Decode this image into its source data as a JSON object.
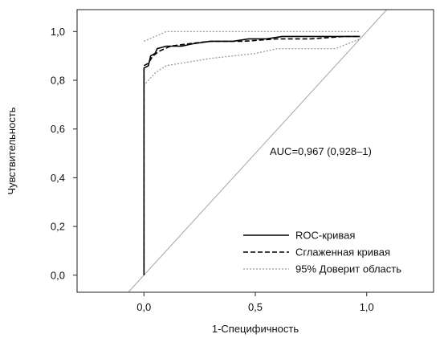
{
  "chart_data": {
    "type": "line",
    "title": "",
    "xlabel": "1-Специфичность",
    "ylabel": "Чувствительность",
    "xlim": [
      -0.3,
      1.3
    ],
    "ylim": [
      -0.07,
      1.09
    ],
    "x_ticks": [
      "0,0",
      "0,5",
      "1,0"
    ],
    "x_tick_values": [
      0.0,
      0.5,
      1.0
    ],
    "y_ticks": [
      "0,0",
      "0,2",
      "0,4",
      "0,6",
      "0,8",
      "1,0"
    ],
    "y_tick_values": [
      0.0,
      0.2,
      0.4,
      0.6,
      0.8,
      1.0
    ],
    "grid": false,
    "legend_position": "bottom-right",
    "annotation": "AUC=0,967 (0,928–1)",
    "colors": {
      "roc": "#000000",
      "smoothed": "#000000",
      "ci": "#9a9a9a",
      "reference": "#a6a6a6",
      "frame": "#222222"
    },
    "series": [
      {
        "name": "ROC-кривая",
        "style": "solid",
        "points": [
          [
            0.0,
            0.0
          ],
          [
            0.0,
            0.85
          ],
          [
            0.02,
            0.86
          ],
          [
            0.03,
            0.9
          ],
          [
            0.05,
            0.91
          ],
          [
            0.06,
            0.93
          ],
          [
            0.1,
            0.94
          ],
          [
            0.17,
            0.94
          ],
          [
            0.22,
            0.95
          ],
          [
            0.3,
            0.96
          ],
          [
            0.4,
            0.96
          ],
          [
            0.47,
            0.97
          ],
          [
            0.55,
            0.97
          ],
          [
            0.62,
            0.98
          ],
          [
            0.75,
            0.98
          ],
          [
            0.86,
            0.98
          ],
          [
            0.97,
            0.98
          ]
        ]
      },
      {
        "name": "Сглаженная кривая",
        "style": "dashed",
        "points": [
          [
            0.0,
            0.0
          ],
          [
            0.0,
            0.86
          ],
          [
            0.02,
            0.87
          ],
          [
            0.04,
            0.9
          ],
          [
            0.07,
            0.92
          ],
          [
            0.12,
            0.94
          ],
          [
            0.2,
            0.95
          ],
          [
            0.3,
            0.96
          ],
          [
            0.45,
            0.96
          ],
          [
            0.6,
            0.97
          ],
          [
            0.75,
            0.97
          ],
          [
            0.9,
            0.98
          ],
          [
            0.97,
            0.98
          ]
        ]
      },
      {
        "name": "95% Доверит область",
        "style": "dotted",
        "points": [
          [
            0.0,
            0.96
          ],
          [
            0.05,
            0.98
          ],
          [
            0.1,
            1.0
          ],
          [
            0.4,
            1.0
          ],
          [
            0.7,
            1.0
          ],
          [
            0.97,
            1.0
          ]
        ]
      },
      {
        "name": "",
        "style": "dotted",
        "points": [
          [
            0.0,
            0.0
          ],
          [
            0.0,
            0.78
          ],
          [
            0.05,
            0.83
          ],
          [
            0.1,
            0.86
          ],
          [
            0.3,
            0.89
          ],
          [
            0.5,
            0.91
          ],
          [
            0.6,
            0.93
          ],
          [
            0.86,
            0.93
          ],
          [
            0.97,
            0.97
          ]
        ]
      }
    ],
    "reference_line": [
      [
        -0.07,
        -0.07
      ],
      [
        1.09,
        1.09
      ]
    ]
  }
}
